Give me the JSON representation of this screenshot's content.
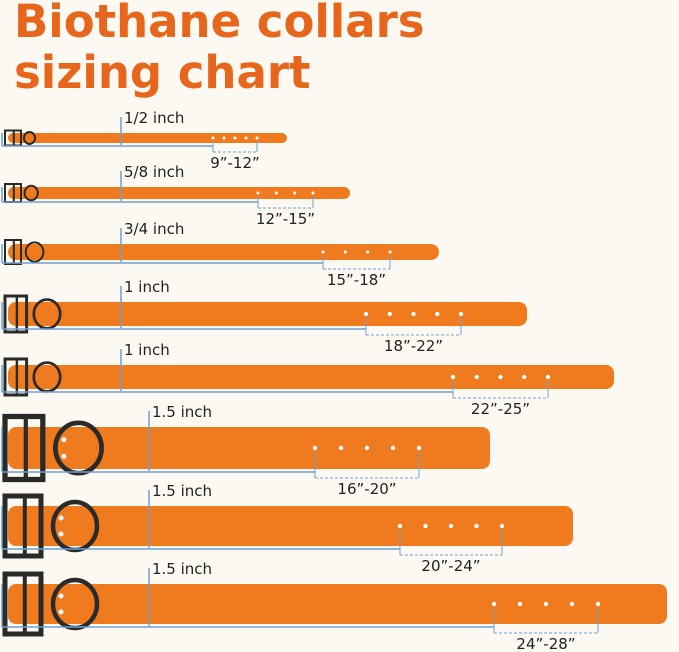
{
  "title": {
    "line1": "Biothane collars",
    "line2": "sizing chart"
  },
  "collars": [
    {
      "width": "1/2 inch",
      "range": "9”-12”"
    },
    {
      "width": "5/8 inch",
      "range": "12”-15”"
    },
    {
      "width": "3/4 inch",
      "range": "15”-18”"
    },
    {
      "width": "1 inch",
      "range": "18”-22”"
    },
    {
      "width": "1 inch",
      "range": "22”-25”"
    },
    {
      "width": "1.5 inch",
      "range": "16”-20”"
    },
    {
      "width": "1.5 inch",
      "range": "20”-24”"
    },
    {
      "width": "1.5 inch",
      "range": "24”-28”"
    }
  ]
}
